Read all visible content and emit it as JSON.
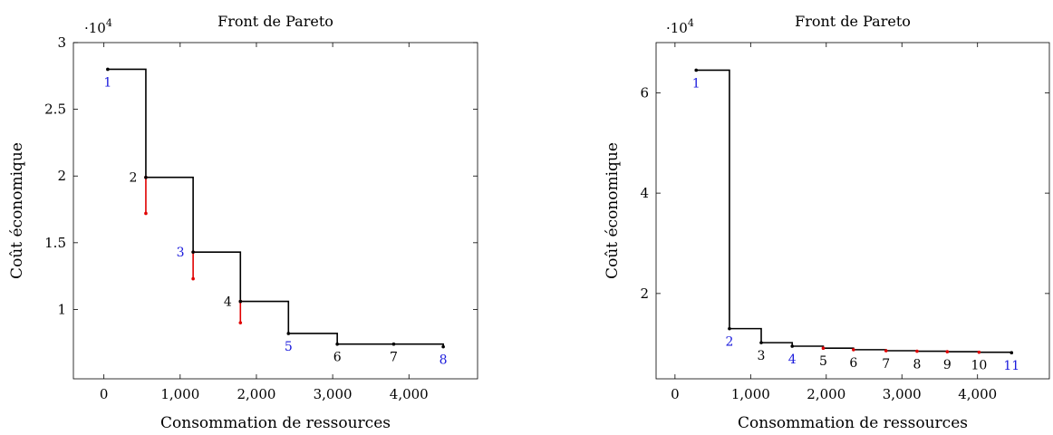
{
  "chart_data": [
    {
      "type": "line",
      "title": "Front de Pareto",
      "xlabel": "Consommation de ressources",
      "ylabel": "Coût économique",
      "y_multiplier": "·10",
      "y_multiplier_exp": "4",
      "xlim": [
        -400,
        4900
      ],
      "ylim": [
        0.48,
        3.0
      ],
      "xticks": [
        0,
        1000,
        2000,
        3000,
        4000
      ],
      "xtick_labels": [
        "0",
        "1,000",
        "2,000",
        "3,000",
        "4,000"
      ],
      "yticks": [
        1,
        1.5,
        2,
        2.5,
        3
      ],
      "ytick_labels": [
        "1",
        "1.5",
        "2",
        "2.5",
        "3"
      ],
      "grid": false,
      "series": [
        {
          "x": [
            50,
            550,
            1170,
            1790,
            2420,
            3060,
            3800,
            4450
          ],
          "y": [
            2.8,
            1.99,
            1.43,
            1.06,
            0.82,
            0.74,
            0.74,
            0.72
          ]
        }
      ],
      "step_ends": [
        {
          "x": 550,
          "y": 2.8
        },
        {
          "x": 1170,
          "y": 1.99
        },
        {
          "x": 1790,
          "y": 1.43
        },
        {
          "x": 2420,
          "y": 1.06
        },
        {
          "x": 3060,
          "y": 0.82
        },
        {
          "x": 4450,
          "y": 0.74
        }
      ],
      "red_drops": [
        {
          "x": 550,
          "y_top": 1.99,
          "y_bottom": 1.72
        },
        {
          "x": 1170,
          "y_top": 1.43,
          "y_bottom": 1.23
        },
        {
          "x": 1790,
          "y_top": 1.06,
          "y_bottom": 0.9
        }
      ],
      "point_labels": [
        {
          "text": "1",
          "color": "#1a1adc",
          "pos": "below"
        },
        {
          "text": "2",
          "color": "#000000",
          "pos": "left"
        },
        {
          "text": "3",
          "color": "#1a1adc",
          "pos": "left"
        },
        {
          "text": "4",
          "color": "#000000",
          "pos": "left"
        },
        {
          "text": "5",
          "color": "#1a1adc",
          "pos": "below"
        },
        {
          "text": "6",
          "color": "#000000",
          "pos": "below"
        },
        {
          "text": "7",
          "color": "#000000",
          "pos": "below"
        },
        {
          "text": "8",
          "color": "#1a1adc",
          "pos": "below"
        }
      ]
    },
    {
      "type": "line",
      "title": "Front de Pareto",
      "xlabel": "Consommation de ressources",
      "ylabel": "Coût économique",
      "y_multiplier": "·10",
      "y_multiplier_exp": "4",
      "xlim": [
        -250,
        4950
      ],
      "ylim": [
        0.3,
        7.0
      ],
      "xticks": [
        0,
        1000,
        2000,
        3000,
        4000
      ],
      "xtick_labels": [
        "0",
        "1,000",
        "2,000",
        "3,000",
        "4,000"
      ],
      "yticks": [
        2,
        4,
        6
      ],
      "ytick_labels": [
        "2",
        "4",
        "6"
      ],
      "grid": false,
      "series": [
        {
          "x": [
            280,
            720,
            1140,
            1550,
            1960,
            2360,
            2790,
            3200,
            3600,
            4020,
            4450
          ],
          "y": [
            6.45,
            1.3,
            1.02,
            0.95,
            0.91,
            0.88,
            0.86,
            0.85,
            0.84,
            0.83,
            0.82
          ]
        }
      ],
      "step_ends": [
        {
          "x": 720,
          "y": 6.45
        },
        {
          "x": 1140,
          "y": 1.3
        },
        {
          "x": 1550,
          "y": 1.02
        }
      ],
      "point_labels": [
        {
          "text": "1",
          "color": "#1a1adc",
          "pos": "below"
        },
        {
          "text": "2",
          "color": "#1a1adc",
          "pos": "below"
        },
        {
          "text": "3",
          "color": "#000000",
          "pos": "below"
        },
        {
          "text": "4",
          "color": "#1a1adc",
          "pos": "below"
        },
        {
          "text": "5",
          "color": "#000000",
          "pos": "below"
        },
        {
          "text": "6",
          "color": "#000000",
          "pos": "below"
        },
        {
          "text": "7",
          "color": "#000000",
          "pos": "below"
        },
        {
          "text": "8",
          "color": "#000000",
          "pos": "below"
        },
        {
          "text": "9",
          "color": "#000000",
          "pos": "below"
        },
        {
          "text": "10",
          "color": "#000000",
          "pos": "below"
        },
        {
          "text": "11",
          "color": "#1a1adc",
          "pos": "below"
        }
      ],
      "red_points": [
        4,
        5,
        6,
        7,
        8,
        9
      ]
    }
  ],
  "colors": {
    "axis": "#000000",
    "line": "#000000",
    "highlight": "#e00000",
    "label_blue": "#1a1adc"
  }
}
